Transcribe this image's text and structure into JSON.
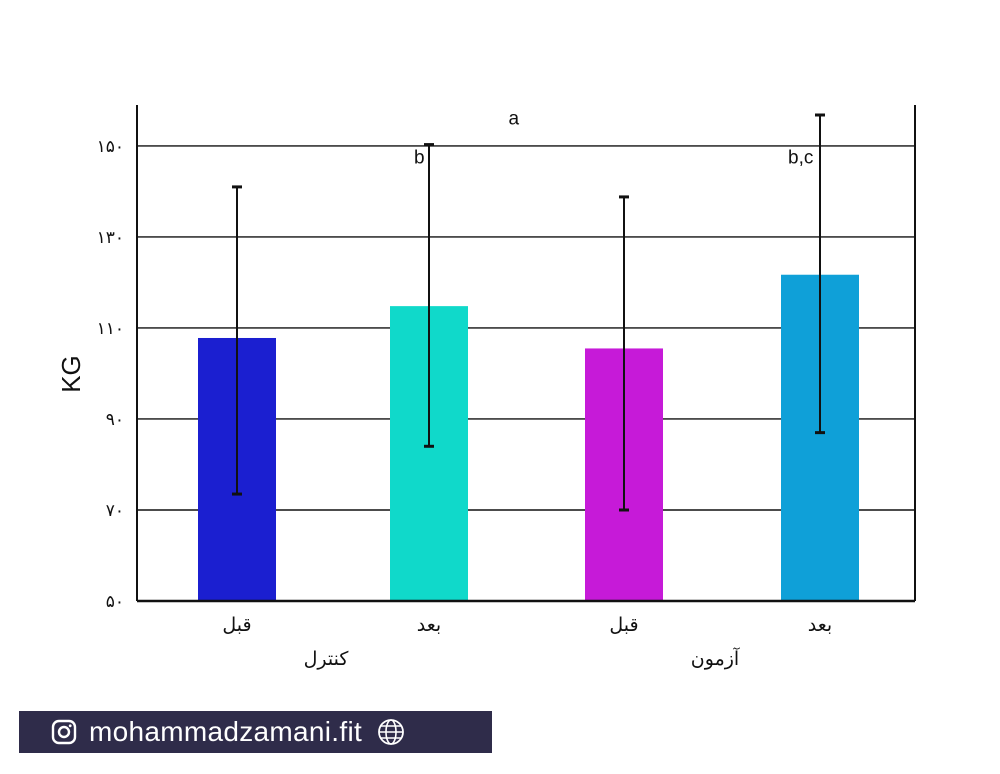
{
  "chart_data": {
    "type": "bar",
    "ylabel": "KG",
    "ylim": [
      50,
      159
    ],
    "yticks": [
      {
        "value": 50,
        "label": "۵۰"
      },
      {
        "value": 70,
        "label": "۷۰"
      },
      {
        "value": 90,
        "label": "۹۰"
      },
      {
        "value": 110,
        "label": "۱۱۰"
      },
      {
        "value": 130,
        "label": "۱۳۰"
      },
      {
        "value": 150,
        "label": "۱۵۰"
      }
    ],
    "grid": true,
    "categories": [
      "قبل",
      "بعد",
      "قبل",
      "بعد"
    ],
    "groups": [
      {
        "label": "کنترل",
        "categories": [
          0,
          1
        ]
      },
      {
        "label": "آزمون",
        "categories": [
          2,
          3
        ]
      }
    ],
    "values": [
      107.8,
      114.8,
      105.5,
      121.7
    ],
    "error_bars": [
      {
        "low": 73.5,
        "high": 141.0
      },
      {
        "low": 84.0,
        "high": 150.3
      },
      {
        "low": 70.0,
        "high": 138.8
      },
      {
        "low": 87.0,
        "high": 156.8
      }
    ],
    "colors": [
      "#1b1fd0",
      "#10d9ca",
      "#c61ad8",
      "#0fa0d8"
    ],
    "annotations": [
      {
        "text": "a",
        "x_between": [
          1,
          2
        ],
        "y": 156
      },
      {
        "text": "b",
        "bar": 1,
        "y": 147.5
      },
      {
        "text": "b,c",
        "bar": 3,
        "y": 147.5
      }
    ]
  },
  "watermark": {
    "text": "mohammadzamani.fit",
    "left_icon": "instagram-icon",
    "right_icon": "globe-icon"
  }
}
